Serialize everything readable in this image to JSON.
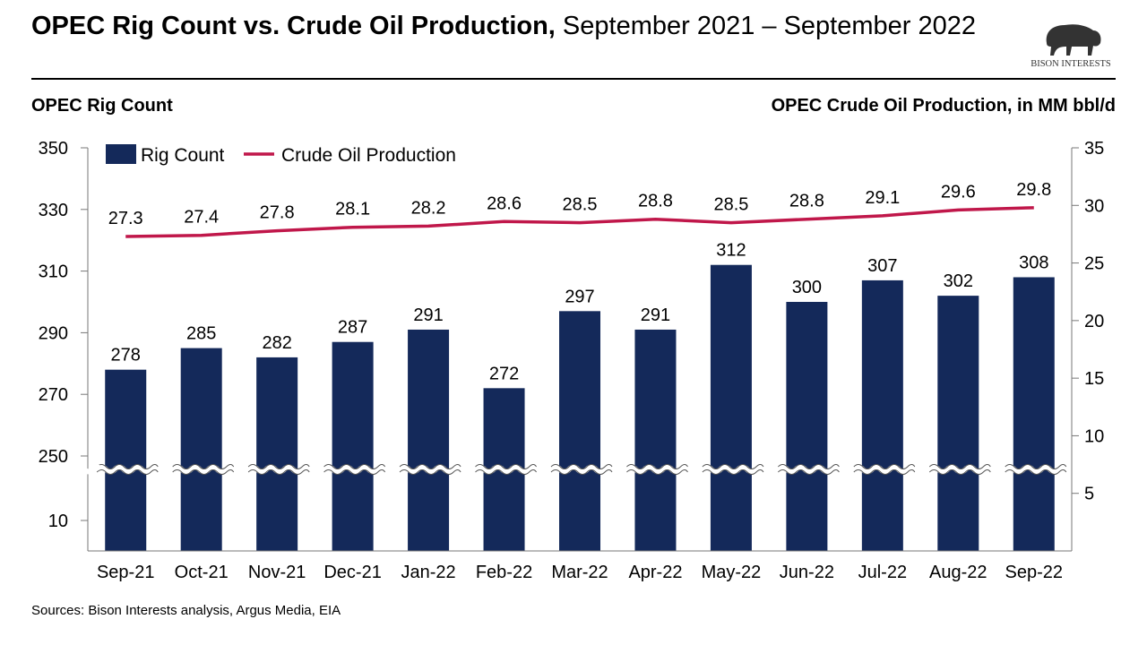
{
  "header": {
    "title_bold": "OPEC Rig Count vs. Crude Oil Production,",
    "title_rest": " September 2021 – September 2022"
  },
  "logo": {
    "text": "BISON INTERESTS"
  },
  "footer": {
    "sources": "Sources: Bison Interests analysis, Argus Media, EIA"
  },
  "chart_data": {
    "type": "bar+line",
    "categories": [
      "Sep-21",
      "Oct-21",
      "Nov-21",
      "Dec-21",
      "Jan-22",
      "Feb-22",
      "Mar-22",
      "Apr-22",
      "May-22",
      "Jun-22",
      "Jul-22",
      "Aug-22",
      "Sep-22"
    ],
    "series": [
      {
        "name": "Rig Count",
        "type": "bar",
        "axis": "left",
        "color": "#14295a",
        "values": [
          278,
          285,
          282,
          287,
          291,
          272,
          297,
          291,
          312,
          300,
          307,
          302,
          308
        ]
      },
      {
        "name": "Crude Oil Production",
        "type": "line",
        "axis": "right",
        "color": "#c0174a",
        "values": [
          27.3,
          27.4,
          27.8,
          28.1,
          28.2,
          28.6,
          28.5,
          28.8,
          28.5,
          28.8,
          29.1,
          29.6,
          29.8
        ]
      }
    ],
    "ylabel_left": "OPEC Rig Count",
    "ylabel_right": "OPEC Crude Oil Production, in MM bbl/d",
    "left_ticks": [
      "350",
      "330",
      "310",
      "290",
      "270",
      "250",
      "10"
    ],
    "left_axis_break": true,
    "ylim_left_upper": [
      250,
      350
    ],
    "right_ticks": [
      "35",
      "30",
      "25",
      "20",
      "15",
      "10",
      "5"
    ],
    "ylim_right": [
      0,
      35
    ],
    "legend": "top-left",
    "grid": false
  }
}
